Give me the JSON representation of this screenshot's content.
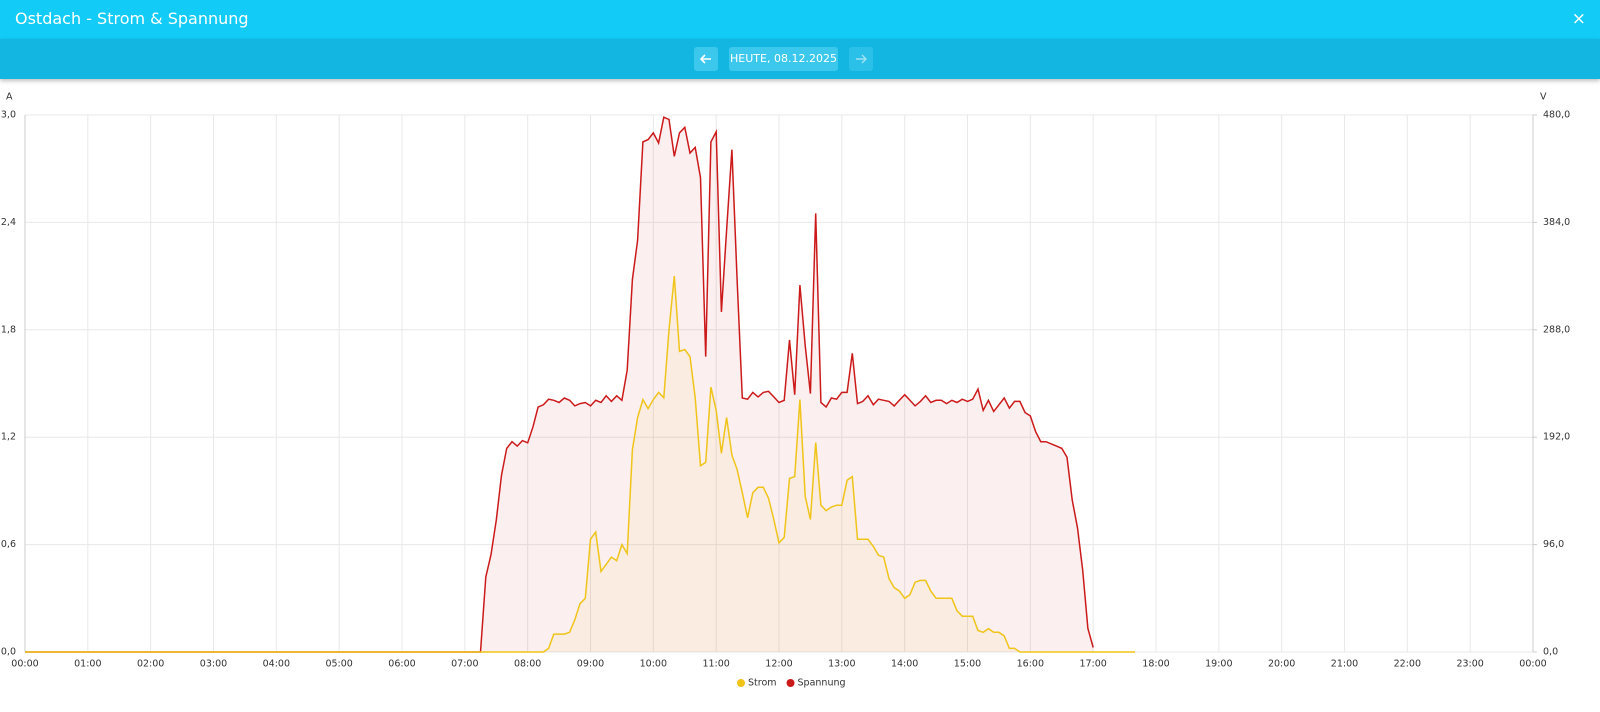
{
  "header": {
    "title": "Ostdach - Strom & Spannung",
    "close": "×",
    "date_button": "HEUTE, 08.12.2025"
  },
  "chart_data": {
    "type": "line",
    "y_label": "A",
    "y2_label": "V",
    "xlim": [
      0,
      1440
    ],
    "xticks": [
      {
        "value": 0,
        "label": "00:00"
      },
      {
        "value": 60,
        "label": "01:00"
      },
      {
        "value": 120,
        "label": "02:00"
      },
      {
        "value": 180,
        "label": "03:00"
      },
      {
        "value": 240,
        "label": "04:00"
      },
      {
        "value": 300,
        "label": "05:00"
      },
      {
        "value": 360,
        "label": "06:00"
      },
      {
        "value": 420,
        "label": "07:00"
      },
      {
        "value": 480,
        "label": "08:00"
      },
      {
        "value": 540,
        "label": "09:00"
      },
      {
        "value": 600,
        "label": "10:00"
      },
      {
        "value": 660,
        "label": "11:00"
      },
      {
        "value": 720,
        "label": "12:00"
      },
      {
        "value": 780,
        "label": "13:00"
      },
      {
        "value": 840,
        "label": "14:00"
      },
      {
        "value": 900,
        "label": "15:00"
      },
      {
        "value": 960,
        "label": "16:00"
      },
      {
        "value": 1020,
        "label": "17:00"
      },
      {
        "value": 1080,
        "label": "18:00"
      },
      {
        "value": 1140,
        "label": "19:00"
      },
      {
        "value": 1200,
        "label": "20:00"
      },
      {
        "value": 1260,
        "label": "21:00"
      },
      {
        "value": 1320,
        "label": "22:00"
      },
      {
        "value": 1380,
        "label": "23:00"
      },
      {
        "value": 1440,
        "label": "00:00"
      }
    ],
    "ylim": [
      0,
      3
    ],
    "yticks": [
      {
        "value": 0,
        "label": "0,0"
      },
      {
        "value": 0.6,
        "label": "0,6"
      },
      {
        "value": 1.2,
        "label": "1,2"
      },
      {
        "value": 1.8,
        "label": "1,8"
      },
      {
        "value": 2.4,
        "label": "2,4"
      },
      {
        "value": 3,
        "label": "3,0"
      }
    ],
    "y2lim": [
      0,
      480
    ],
    "y2ticks": [
      {
        "value": 0,
        "label": "0,0"
      },
      {
        "value": 96,
        "label": "96,0"
      },
      {
        "value": 192,
        "label": "192,0"
      },
      {
        "value": 288,
        "label": "288,0"
      },
      {
        "value": 384,
        "label": "384,0"
      },
      {
        "value": 480,
        "label": "480,0"
      }
    ],
    "grid": true,
    "legend": "bottom",
    "x": [
      0,
      435,
      440,
      445,
      450,
      455,
      460,
      465,
      470,
      475,
      480,
      485,
      490,
      495,
      500,
      505,
      510,
      515,
      520,
      525,
      530,
      535,
      540,
      545,
      550,
      555,
      560,
      565,
      570,
      575,
      580,
      585,
      590,
      595,
      600,
      605,
      610,
      615,
      620,
      625,
      630,
      635,
      640,
      645,
      650,
      655,
      660,
      665,
      670,
      675,
      680,
      685,
      690,
      695,
      700,
      705,
      710,
      715,
      720,
      725,
      730,
      735,
      740,
      745,
      750,
      755,
      760,
      765,
      770,
      775,
      780,
      785,
      790,
      795,
      800,
      805,
      810,
      815,
      820,
      825,
      830,
      835,
      840,
      845,
      850,
      855,
      860,
      865,
      870,
      875,
      880,
      885,
      890,
      895,
      900,
      905,
      910,
      915,
      920,
      925,
      930,
      935,
      940,
      945,
      950,
      955,
      960,
      965,
      970,
      975,
      980,
      985,
      990,
      995,
      1000,
      1005,
      1010,
      1015,
      1020,
      1060
    ],
    "series": [
      {
        "name": "Strom",
        "color": "#f0c419",
        "axis": "y",
        "values": [
          0,
          0,
          0,
          0,
          0,
          0,
          0,
          0,
          0,
          0,
          0,
          0,
          0,
          0,
          0.02,
          0.1,
          0.1,
          0.1,
          0.11,
          0.18,
          0.27,
          0.3,
          0.63,
          0.67,
          0.45,
          0.49,
          0.53,
          0.51,
          0.6,
          0.55,
          1.13,
          1.31,
          1.41,
          1.36,
          1.41,
          1.45,
          1.42,
          1.8,
          2.1,
          1.68,
          1.69,
          1.65,
          1.42,
          1.04,
          1.06,
          1.48,
          1.35,
          1.11,
          1.31,
          1.1,
          1.02,
          0.89,
          0.75,
          0.89,
          0.92,
          0.92,
          0.86,
          0.74,
          0.61,
          0.64,
          0.97,
          0.98,
          1.41,
          0.87,
          0.74,
          1.17,
          0.82,
          0.79,
          0.81,
          0.82,
          0.82,
          0.96,
          0.98,
          0.63,
          0.63,
          0.63,
          0.59,
          0.54,
          0.53,
          0.41,
          0.36,
          0.34,
          0.3,
          0.32,
          0.39,
          0.4,
          0.4,
          0.34,
          0.3,
          0.3,
          0.3,
          0.3,
          0.23,
          0.2,
          0.2,
          0.2,
          0.12,
          0.11,
          0.13,
          0.11,
          0.11,
          0.09,
          0.02,
          0.02,
          0,
          0,
          0,
          0,
          0,
          0,
          0,
          0,
          0,
          0,
          0,
          0,
          0,
          0,
          0,
          0
        ]
      },
      {
        "name": "Spannung",
        "color": "#cc1a1a",
        "axis": "y2",
        "values": [
          0,
          0,
          67,
          87,
          118,
          158,
          182,
          188,
          184,
          189,
          187,
          201,
          219,
          221,
          226,
          225,
          223,
          227,
          225,
          220,
          222,
          223,
          220,
          225,
          223,
          229,
          224,
          229,
          225,
          252,
          333,
          368,
          456,
          458,
          464,
          455,
          478,
          476,
          443,
          464,
          469,
          446,
          451,
          424,
          264,
          456,
          465,
          304,
          377,
          449,
          333,
          227,
          226,
          232,
          228,
          232,
          233,
          228,
          223,
          225,
          279,
          230,
          328,
          274,
          231,
          392,
          223,
          219,
          227,
          226,
          232,
          232,
          267,
          222,
          224,
          229,
          221,
          226,
          225,
          224,
          220,
          225,
          230,
          225,
          220,
          224,
          229,
          223,
          225,
          225,
          222,
          225,
          223,
          226,
          224,
          226,
          235,
          216,
          225,
          215,
          221,
          227,
          218,
          224,
          224,
          214,
          211,
          197,
          188,
          188,
          186,
          184,
          182,
          174,
          136,
          111,
          73,
          21,
          4,
          null
        ]
      }
    ]
  }
}
